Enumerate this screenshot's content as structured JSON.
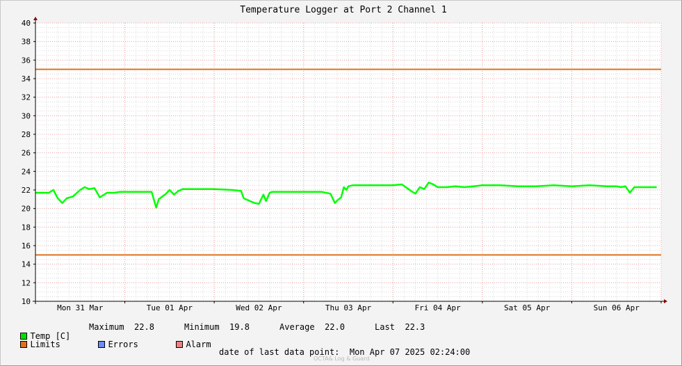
{
  "colors": {
    "background": "#f3f3f3",
    "plot_background": "#ffffff",
    "temp": "#00ff00",
    "limits": "#e0701a",
    "errors": "#6b8cff",
    "alarm": "#f08080",
    "grid_major": "#f0a0a0",
    "grid_minor": "#d8d8d8"
  },
  "chart_data": {
    "type": "line",
    "title": "Temperature Logger at Port 2 Channel 1",
    "ylim": [
      10,
      40
    ],
    "yticks": [
      "10",
      "12",
      "14",
      "16",
      "18",
      "20",
      "22",
      "24",
      "26",
      "28",
      "30",
      "32",
      "34",
      "36",
      "38",
      "40"
    ],
    "x_range_days": [
      0,
      7
    ],
    "x_tick_labels": [
      "Mon 31 Mar",
      "Tue 01 Apr",
      "Wed 02 Apr",
      "Thu 03 Apr",
      "Fri 04 Apr",
      "Sat 05 Apr",
      "Sun 06 Apr"
    ],
    "grid": true,
    "limits": [
      35,
      15
    ],
    "series": [
      {
        "name": "Temp [C]",
        "x": [
          0.0,
          0.15,
          0.2,
          0.25,
          0.3,
          0.35,
          0.42,
          0.5,
          0.55,
          0.6,
          0.66,
          0.72,
          0.8,
          0.88,
          0.95,
          1.0,
          1.1,
          1.2,
          1.3,
          1.35,
          1.38,
          1.42,
          1.45,
          1.5,
          1.55,
          1.6,
          1.65,
          1.7,
          1.8,
          2.0,
          2.2,
          2.3,
          2.33,
          2.4,
          2.45,
          2.5,
          2.55,
          2.58,
          2.62,
          2.65,
          2.7,
          2.8,
          3.0,
          3.2,
          3.3,
          3.35,
          3.38,
          3.42,
          3.45,
          3.48,
          3.5,
          3.55,
          3.6,
          3.8,
          4.0,
          4.1,
          4.2,
          4.25,
          4.3,
          4.35,
          4.4,
          4.45,
          4.5,
          4.6,
          4.7,
          4.8,
          4.9,
          5.0,
          5.2,
          5.4,
          5.6,
          5.8,
          6.0,
          6.2,
          6.4,
          6.5,
          6.55,
          6.6,
          6.65,
          6.7,
          6.8,
          6.9,
          6.95
        ],
        "y": [
          21.7,
          21.7,
          22.0,
          21.1,
          20.6,
          21.1,
          21.3,
          22.0,
          22.3,
          22.1,
          22.2,
          21.2,
          21.7,
          21.7,
          21.8,
          21.8,
          21.8,
          21.8,
          21.8,
          20.1,
          21.0,
          21.3,
          21.5,
          22.0,
          21.5,
          21.9,
          22.1,
          22.1,
          22.1,
          22.1,
          22.0,
          21.9,
          21.1,
          20.8,
          20.6,
          20.5,
          21.5,
          20.8,
          21.7,
          21.8,
          21.8,
          21.8,
          21.8,
          21.8,
          21.6,
          20.6,
          20.9,
          21.2,
          22.3,
          22.0,
          22.4,
          22.5,
          22.5,
          22.5,
          22.5,
          22.6,
          21.9,
          21.6,
          22.3,
          22.1,
          22.8,
          22.6,
          22.3,
          22.3,
          22.4,
          22.3,
          22.4,
          22.5,
          22.5,
          22.4,
          22.4,
          22.5,
          22.4,
          22.5,
          22.4,
          22.4,
          22.3,
          22.4,
          21.7,
          22.3,
          22.3,
          22.3,
          22.3
        ]
      }
    ]
  },
  "legend": {
    "temp_label": "Temp [C]",
    "maximum_label": "Maximum",
    "maximum_value": "22.8",
    "minimum_label": "Minimum",
    "minimum_value": "19.8",
    "average_label": "Average",
    "average_value": "22.0",
    "last_label": "Last",
    "last_value": "22.3",
    "limits_label": "Limits",
    "errors_label": "Errors",
    "alarm_label": "Alarm"
  },
  "footer": {
    "last_point_label": "date of last data point:",
    "last_point_value": "Mon Apr 07 2025 02:24:00",
    "watermark": "OCTA& Log & Guard"
  }
}
